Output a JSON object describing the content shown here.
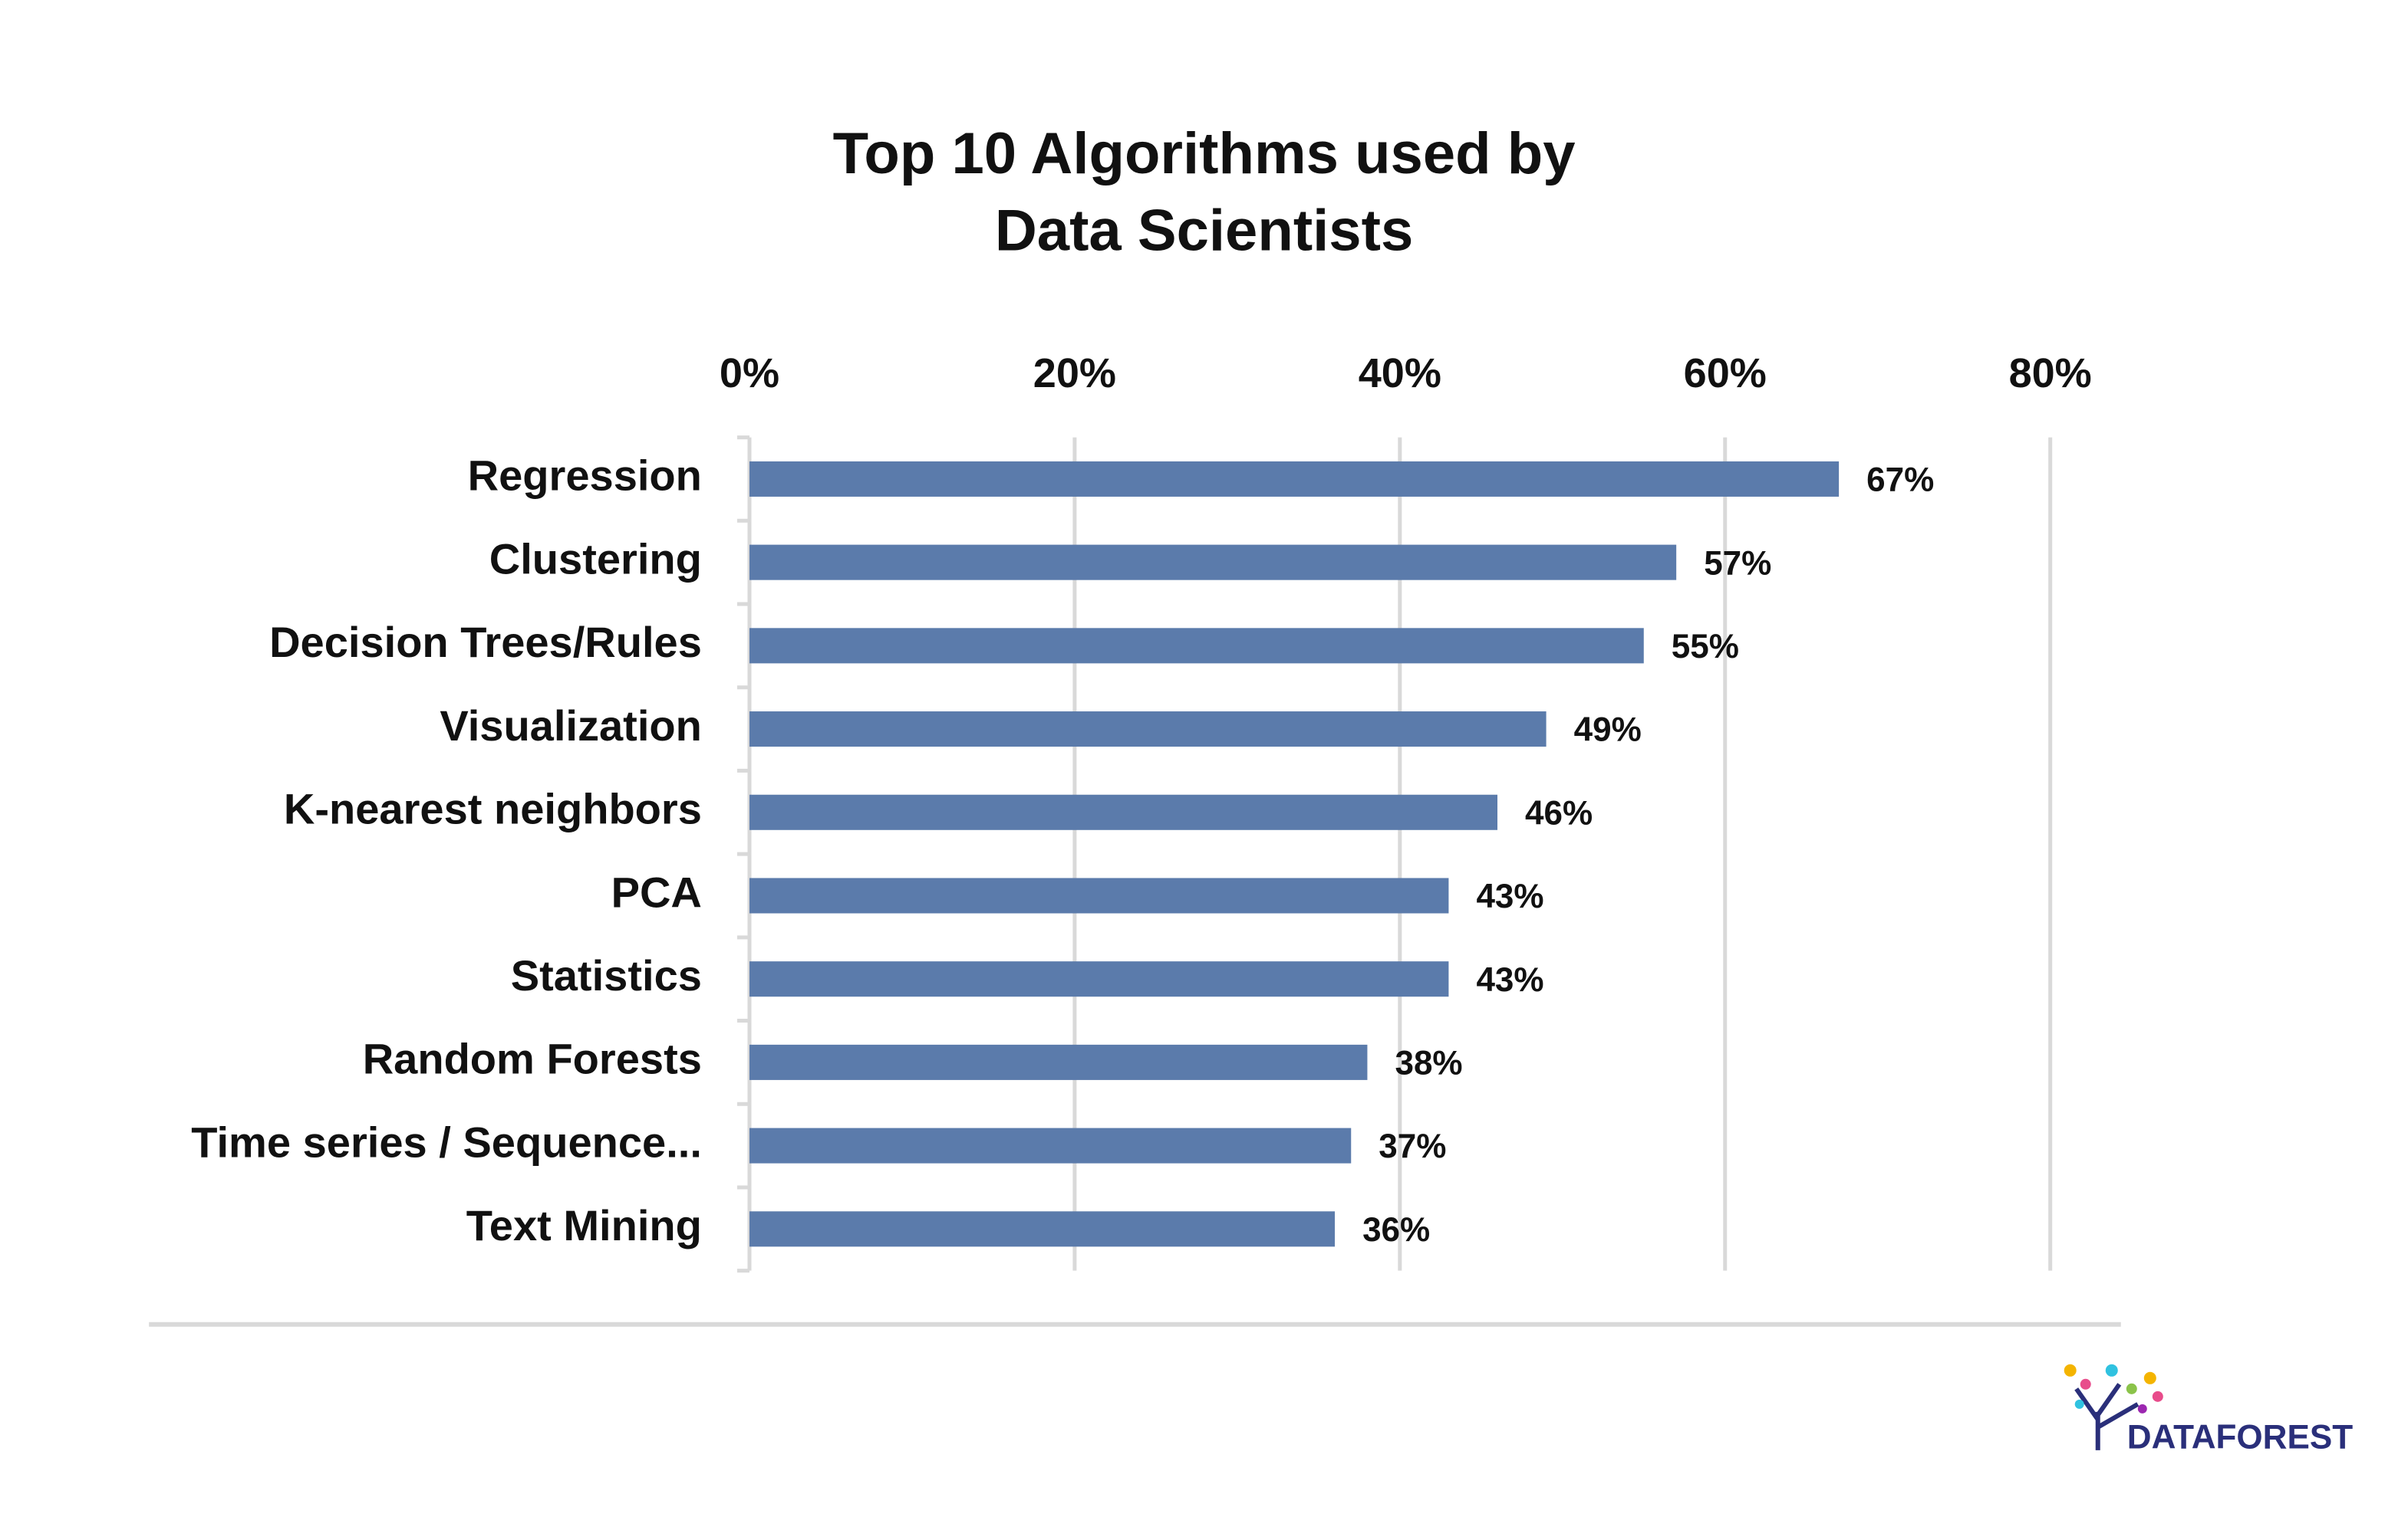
{
  "chart_data": {
    "type": "bar",
    "orientation": "horizontal",
    "title": "Top 10 Algorithms used by Data Scientists",
    "categories": [
      "Regression",
      "Clustering",
      "Decision Trees/Rules",
      "Visualization",
      "K-nearest neighbors",
      "PCA",
      "Statistics",
      "Random Forests",
      "Time series / Sequence...",
      "Text Mining"
    ],
    "values": [
      67,
      57,
      55,
      49,
      46,
      43,
      43,
      38,
      37,
      36
    ],
    "value_labels": [
      "67%",
      "57%",
      "55%",
      "49%",
      "46%",
      "43%",
      "43%",
      "38%",
      "37%",
      "36%"
    ],
    "color": "#5b7bab",
    "xlim": [
      0,
      80
    ],
    "xticks": [
      {
        "value": 0,
        "label": "0%"
      },
      {
        "value": 20,
        "label": "20%"
      },
      {
        "value": 40,
        "label": "40%"
      },
      {
        "value": 60,
        "label": "60%"
      },
      {
        "value": 80,
        "label": "80%"
      }
    ],
    "grid": true
  },
  "brand": "DATAFOREST"
}
